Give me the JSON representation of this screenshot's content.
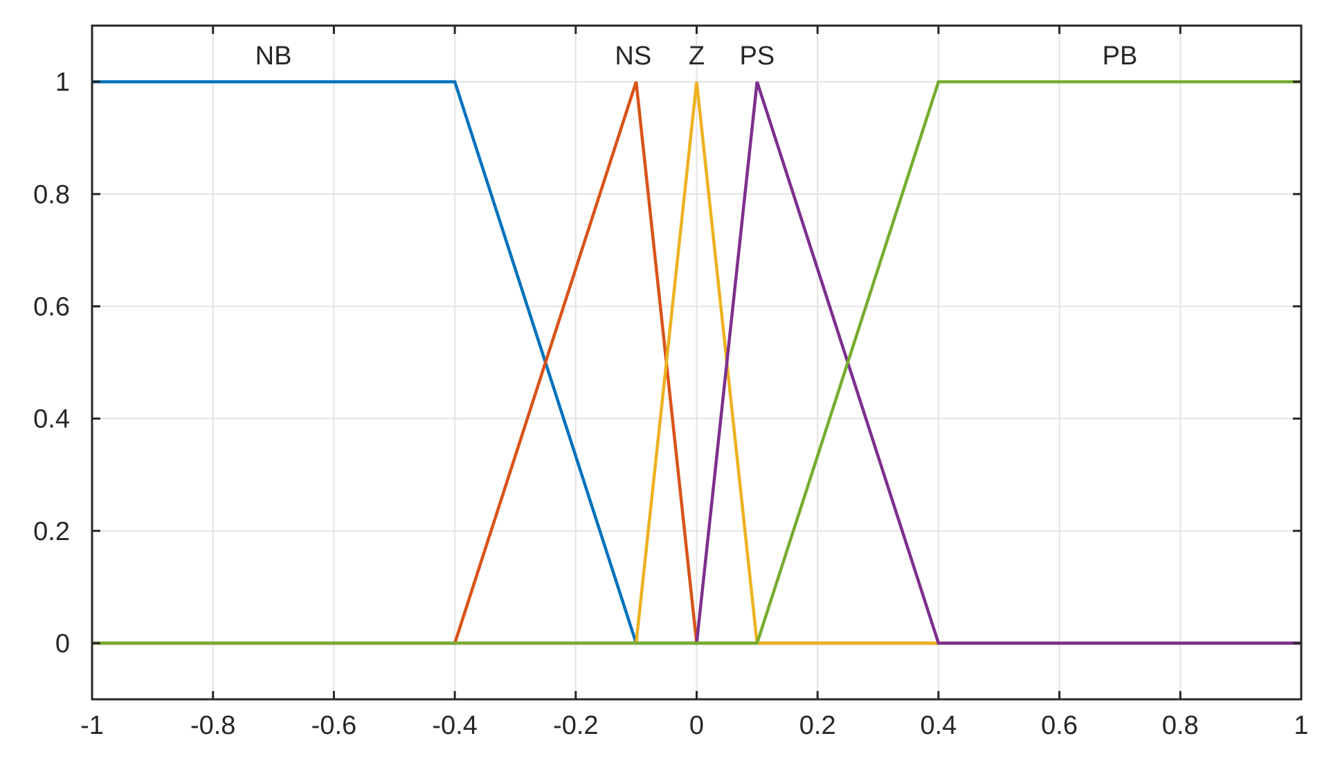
{
  "chart_data": {
    "type": "line",
    "title": "",
    "xlabel": "",
    "ylabel": "",
    "xlim": [
      -1,
      1
    ],
    "ylim": [
      -0.1,
      1.1
    ],
    "grid": true,
    "x_ticks": [
      -1,
      -0.8,
      -0.6,
      -0.4,
      -0.2,
      0,
      0.2,
      0.4,
      0.6,
      0.8,
      1
    ],
    "x_tick_labels": [
      "-1",
      "-0.8",
      "-0.6",
      "-0.4",
      "-0.2",
      "0",
      "0.2",
      "0.4",
      "0.6",
      "0.8",
      "1"
    ],
    "y_ticks": [
      0,
      0.2,
      0.4,
      0.6,
      0.8,
      1
    ],
    "y_tick_labels": [
      "0",
      "0.2",
      "0.4",
      "0.6",
      "0.8",
      "1"
    ],
    "series": [
      {
        "name": "NB",
        "color": "#0072BD",
        "x": [
          -1,
          -0.4,
          -0.1,
          1
        ],
        "y": [
          1,
          1,
          0,
          0
        ],
        "label_x": -0.7
      },
      {
        "name": "NS",
        "color": "#D95319",
        "x": [
          -1,
          -0.4,
          -0.1,
          0,
          1
        ],
        "y": [
          0,
          0,
          1,
          0,
          0
        ],
        "label_x": -0.105
      },
      {
        "name": "Z",
        "color": "#EDB120",
        "x": [
          -1,
          -0.1,
          0,
          0.1,
          0.4
        ],
        "y": [
          0,
          0,
          1,
          0,
          0
        ],
        "label_x": 0.0
      },
      {
        "name": "PS",
        "color": "#7E2F8E",
        "x": [
          -1,
          0,
          0.1,
          0.4,
          1
        ],
        "y": [
          0,
          0,
          1,
          0,
          0
        ],
        "label_x": 0.1
      },
      {
        "name": "PB",
        "color": "#77AC30",
        "x": [
          -1,
          0.1,
          0.4,
          1
        ],
        "y": [
          0,
          0,
          1,
          1
        ],
        "label_x": 0.7
      }
    ]
  }
}
